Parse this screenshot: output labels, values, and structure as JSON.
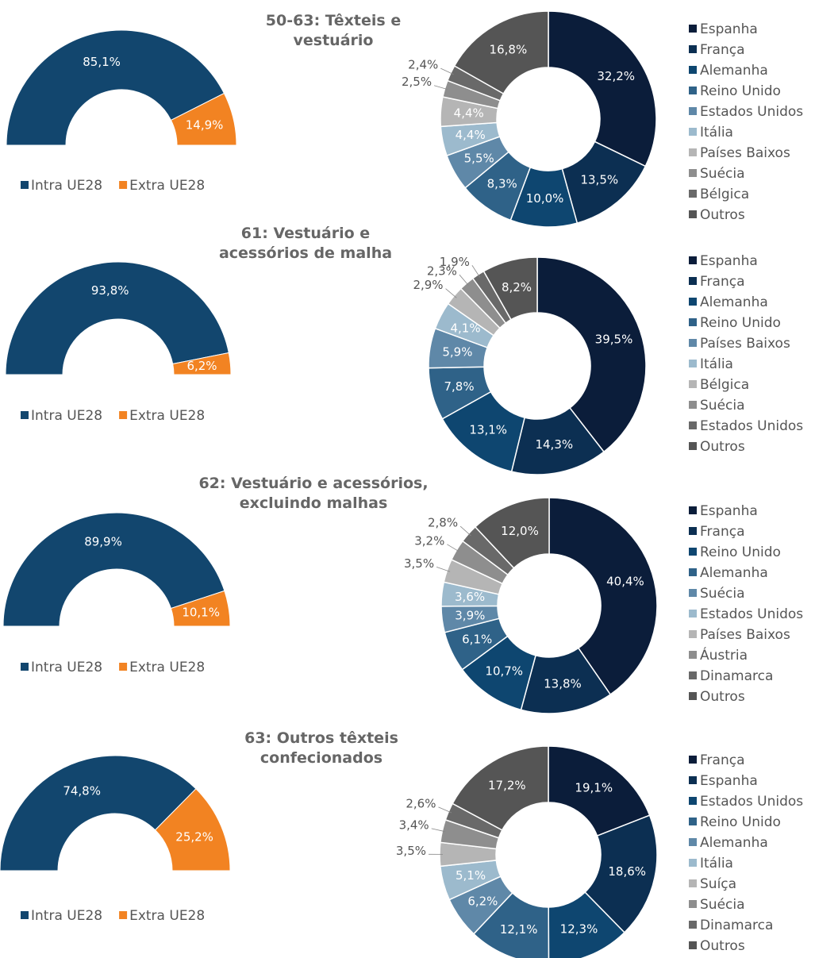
{
  "chart_data": [
    {
      "type": "half-donut",
      "categories": [
        "Intra UE28",
        "Extra UE28"
      ],
      "values": [
        85.1,
        14.9
      ],
      "value_labels": [
        "85,1%",
        "14,9%"
      ],
      "colors": [
        "#12466e",
        "#f28322"
      ]
    },
    {
      "type": "donut",
      "title": "50-63: Têxteis e vestuário",
      "categories": [
        "Espanha",
        "França",
        "Alemanha",
        "Reino Unido",
        "Estados Unidos",
        "Itália",
        "Países Baixos",
        "Suécia",
        "Bélgica",
        "Outros"
      ],
      "values": [
        32.2,
        13.5,
        10.0,
        8.3,
        5.5,
        4.4,
        4.4,
        2.5,
        2.4,
        16.8
      ],
      "value_labels": [
        "32,2%",
        "13,5%",
        "10,0%",
        "8,3%",
        "5,5%",
        "4,4%",
        "4,4%",
        "2,5%",
        "2,4%",
        "16,8%"
      ],
      "colors": [
        "#0b1d3a",
        "#0c2f52",
        "#0e4670",
        "#2f6288",
        "#5f88a8",
        "#9cbacd",
        "#b5b5b5",
        "#8e8e8e",
        "#696969",
        "#555555"
      ]
    },
    {
      "type": "half-donut",
      "categories": [
        "Intra UE28",
        "Extra UE28"
      ],
      "values": [
        93.8,
        6.2
      ],
      "value_labels": [
        "93,8%",
        "6,2%"
      ],
      "colors": [
        "#12466e",
        "#f28322"
      ]
    },
    {
      "type": "donut",
      "title": "61: Vestuário e acessórios de malha",
      "categories": [
        "Espanha",
        "França",
        "Alemanha",
        "Reino Unido",
        "Países Baixos",
        "Itália",
        "Bélgica",
        "Suécia",
        "Estados Unidos",
        "Outros"
      ],
      "values": [
        39.5,
        14.3,
        13.1,
        7.8,
        5.9,
        4.1,
        2.9,
        2.3,
        1.9,
        8.2
      ],
      "value_labels": [
        "39,5%",
        "14,3%",
        "13,1%",
        "7,8%",
        "5,9%",
        "4,1%",
        "2,9%",
        "2,3%",
        "1,9%",
        "8,2%"
      ],
      "colors": [
        "#0b1d3a",
        "#0c2f52",
        "#0e4670",
        "#2f6288",
        "#5f88a8",
        "#9cbacd",
        "#b5b5b5",
        "#8e8e8e",
        "#696969",
        "#555555"
      ]
    },
    {
      "type": "half-donut",
      "categories": [
        "Intra UE28",
        "Extra UE28"
      ],
      "values": [
        89.9,
        10.1
      ],
      "value_labels": [
        "89,9%",
        "10,1%"
      ],
      "colors": [
        "#12466e",
        "#f28322"
      ]
    },
    {
      "type": "donut",
      "title": "62: Vestuário e acessórios, excluindo malhas",
      "categories": [
        "Espanha",
        "França",
        "Reino Unido",
        "Alemanha",
        "Suécia",
        "Estados Unidos",
        "Países Baixos",
        "Áustria",
        "Dinamarca",
        "Outros"
      ],
      "values": [
        40.4,
        13.8,
        10.7,
        6.1,
        3.9,
        3.6,
        3.5,
        3.2,
        2.8,
        12.0
      ],
      "value_labels": [
        "40,4%",
        "13,8%",
        "10,7%",
        "6,1%",
        "3,9%",
        "3,6%",
        "3,5%",
        "3,2%",
        "2,8%",
        "12,0%"
      ],
      "colors": [
        "#0b1d3a",
        "#0c2f52",
        "#0e4670",
        "#2f6288",
        "#5f88a8",
        "#9cbacd",
        "#b5b5b5",
        "#8e8e8e",
        "#696969",
        "#555555"
      ]
    },
    {
      "type": "half-donut",
      "categories": [
        "Intra UE28",
        "Extra UE28"
      ],
      "values": [
        74.8,
        25.2
      ],
      "value_labels": [
        "74,8%",
        "25,2%"
      ],
      "colors": [
        "#12466e",
        "#f28322"
      ]
    },
    {
      "type": "donut",
      "title": "63: Outros têxteis confecionados",
      "categories": [
        "França",
        "Espanha",
        "Estados Unidos",
        "Reino Unido",
        "Alemanha",
        "Itália",
        "Suíça",
        "Suécia",
        "Dinamarca",
        "Outros"
      ],
      "values": [
        19.1,
        18.6,
        12.3,
        12.1,
        6.2,
        5.1,
        3.5,
        3.4,
        2.6,
        17.2
      ],
      "value_labels": [
        "19,1%",
        "18,6%",
        "12,3%",
        "12,1%",
        "6,2%",
        "5,1%",
        "3,5%",
        "3,4%",
        "2,6%",
        "17,2%"
      ],
      "colors": [
        "#0b1d3a",
        "#0c2f52",
        "#0e4670",
        "#2f6288",
        "#5f88a8",
        "#9cbacd",
        "#b5b5b5",
        "#8e8e8e",
        "#696969",
        "#555555"
      ]
    }
  ]
}
